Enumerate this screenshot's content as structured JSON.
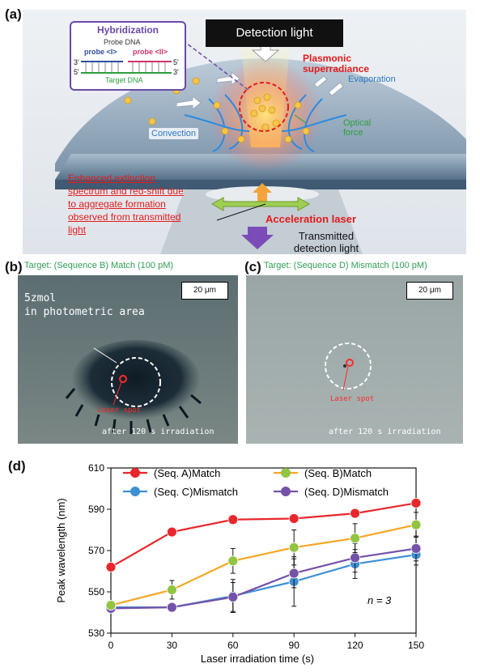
{
  "panels": {
    "a": {
      "label": "(a)",
      "hybridization": {
        "title": "Hybridization",
        "probe_dna": "Probe DNA",
        "probe_1": "probe <I>",
        "probe_2": "probe <II>",
        "end_3_left": "3'",
        "end_5_right": "5'",
        "end_5_left": "5'",
        "end_3_right": "3'",
        "target": "Target DNA"
      },
      "detection_light": "Detection light",
      "plasmonic": "Plasmonic\nsuperradiance",
      "evaporation": "Evaporation",
      "optical_force": "Optical\nforce",
      "convection": "Convection",
      "enhanced": "Enhanced extinction spectrum and red-shift due to aggregate formation observed from transmitted light",
      "acceleration": "Acceleration laser",
      "transmitted": "Transmitted\ndetection light"
    },
    "b": {
      "label": "(b)",
      "title": "Target: (Sequence B) Match (100 pM)",
      "scale": "20 μm",
      "area_note": "5zmol\nin photometric area",
      "spot": "Laser spot",
      "caption": "after 120 s irradiation"
    },
    "c": {
      "label": "(c)",
      "title": "Target: (Sequence D) Mismatch (100 pM)",
      "scale": "20 μm",
      "spot": "Laser spot",
      "caption": "after 120 s irradiation"
    },
    "d": {
      "label": "(d)",
      "annotation": "n = 3"
    }
  },
  "colors": {
    "seqA": "#e8272c",
    "seqB": "#93c441",
    "seqC": "#3f8fd4",
    "seqD": "#7452a8",
    "lineB": "#f5a623",
    "red_label": "#e31b1b",
    "green_title": "#2f9e55"
  },
  "chart_data": {
    "type": "line",
    "xlabel": "Laser irradiation time (s)",
    "ylabel": "Peak wavelength (nm)",
    "x": [
      0,
      30,
      60,
      90,
      120,
      150
    ],
    "xlim": [
      0,
      150
    ],
    "ylim": [
      530,
      610
    ],
    "yticks": [
      530,
      550,
      570,
      590,
      610
    ],
    "xticks": [
      0,
      30,
      60,
      90,
      120,
      150
    ],
    "legend": "top",
    "series": [
      {
        "name": "(Seq. A)Match",
        "values": [
          562,
          579,
          585,
          585.5,
          588,
          593
        ],
        "errors": [
          0,
          0,
          2,
          0,
          0,
          0
        ]
      },
      {
        "name": "(Seq. B)Match",
        "values": [
          543.5,
          551,
          565,
          571.5,
          576,
          582.5
        ],
        "errors": [
          0,
          4.5,
          6,
          8.5,
          7,
          6
        ]
      },
      {
        "name": "(Seq. C)Mismatch",
        "values": [
          542.5,
          542.5,
          548,
          555,
          563.5,
          568
        ],
        "errors": [
          0,
          1.5,
          8,
          12,
          7,
          5
        ]
      },
      {
        "name": "(Seq. D)Mismatch",
        "values": [
          542,
          542.5,
          547.5,
          559,
          566.5,
          571
        ],
        "errors": [
          0,
          1.5,
          7,
          7,
          7,
          6
        ]
      }
    ]
  }
}
